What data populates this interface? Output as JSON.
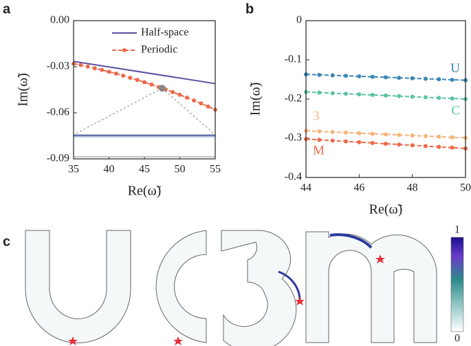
{
  "chart_data": [
    {
      "type": "line",
      "panel_label": "a",
      "xlabel": "Re(ω̃)",
      "ylabel": "Im(ω̃)",
      "xlim": [
        35,
        55
      ],
      "xticks": [
        35,
        40,
        45,
        50,
        55
      ],
      "ylim": [
        -0.09,
        0
      ],
      "yticks": [
        {
          "value": 0,
          "label": "0.00"
        },
        -0.03,
        -0.06,
        -0.09
      ],
      "legend": "upper right",
      "series": [
        {
          "name": "Half-space",
          "color": "#5b4f9e",
          "linestyle": "solid",
          "marker": false,
          "x": [
            35,
            55
          ],
          "values": [
            -0.0265,
            -0.041
          ]
        },
        {
          "name": "Periodic",
          "color": "#ec6a4c",
          "linestyle": "dashed",
          "marker": true,
          "x": [
            35,
            36,
            37,
            38,
            39,
            40,
            41,
            42,
            43,
            44,
            45,
            46,
            47,
            48,
            49,
            50,
            51,
            52,
            53,
            54,
            55
          ],
          "values": [
            -0.028,
            -0.0289,
            -0.0299,
            -0.031,
            -0.0321,
            -0.0333,
            -0.0345,
            -0.0358,
            -0.0372,
            -0.0386,
            -0.0401,
            -0.0416,
            -0.0432,
            -0.0448,
            -0.0465,
            -0.0483,
            -0.0501,
            -0.052,
            -0.0539,
            -0.0559,
            -0.058
          ]
        }
      ],
      "highlight_point": {
        "x": 47.5,
        "y": -0.044
      }
    },
    {
      "type": "line",
      "panel_label": "b",
      "xlabel": "Re(ω̃)",
      "ylabel": "Im(ω̃)",
      "xlim": [
        44,
        50
      ],
      "xticks": [
        44,
        46,
        48,
        50
      ],
      "ylim": [
        -0.4,
        0
      ],
      "yticks": [
        0,
        -0.1,
        -0.2,
        -0.3,
        -0.4
      ],
      "series": [
        {
          "name": "U",
          "color": "#3a86b5",
          "linestyle": "dashed",
          "marker": true,
          "x": [
            44,
            44.5,
            45,
            45.5,
            46,
            46.5,
            47,
            47.5,
            48,
            48.5,
            49,
            49.5,
            50
          ],
          "values": [
            -0.137,
            -0.1383,
            -0.1395,
            -0.1408,
            -0.142,
            -0.1433,
            -0.1445,
            -0.1458,
            -0.147,
            -0.1483,
            -0.1495,
            -0.1508,
            -0.152
          ]
        },
        {
          "name": "C",
          "color": "#5bc4a4",
          "linestyle": "dashed",
          "marker": true,
          "x": [
            44,
            44.5,
            45,
            45.5,
            46,
            46.5,
            47,
            47.5,
            48,
            48.5,
            49,
            49.5,
            50
          ],
          "values": [
            -0.182,
            -0.1835,
            -0.185,
            -0.1865,
            -0.188,
            -0.1895,
            -0.191,
            -0.1925,
            -0.194,
            -0.1955,
            -0.197,
            -0.1985,
            -0.2
          ]
        },
        {
          "name": "3",
          "color": "#f5b57a",
          "linestyle": "dashed",
          "marker": true,
          "x": [
            44,
            44.5,
            45,
            45.5,
            46,
            46.5,
            47,
            47.5,
            48,
            48.5,
            49,
            49.5,
            50
          ],
          "values": [
            -0.281,
            -0.2825,
            -0.284,
            -0.2855,
            -0.287,
            -0.2885,
            -0.29,
            -0.2915,
            -0.293,
            -0.2945,
            -0.296,
            -0.2975,
            -0.299
          ]
        },
        {
          "name": "M",
          "color": "#ec6a4c",
          "linestyle": "dashed",
          "marker": true,
          "x": [
            44,
            44.5,
            45,
            45.5,
            46,
            46.5,
            47,
            47.5,
            48,
            48.5,
            49,
            49.5,
            50
          ],
          "values": [
            -0.302,
            -0.304,
            -0.306,
            -0.308,
            -0.31,
            -0.312,
            -0.314,
            -0.316,
            -0.318,
            -0.32,
            -0.322,
            -0.324,
            -0.326
          ]
        }
      ]
    }
  ],
  "panel_c": {
    "panel_label": "c",
    "colorbar": {
      "max": 1,
      "min": 0
    }
  }
}
